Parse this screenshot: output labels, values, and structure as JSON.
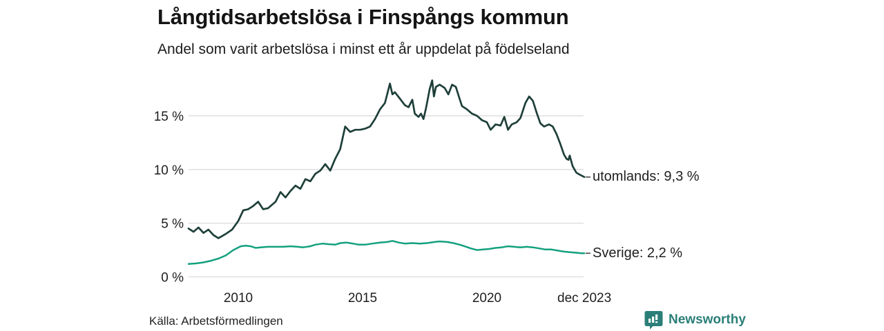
{
  "header": {
    "title": "Långtidsarbetslösa i Finspångs kommun",
    "subtitle": "Andel som varit arbetslösa i minst ett år uppdelat på födelseland"
  },
  "footer": {
    "source": "Källa: Arbetsförmedlingen",
    "brand": "Newsworthy"
  },
  "colors": {
    "grid": "#dcdcdc",
    "tick_dash": "#4a4a4a",
    "brand_teal": "#2b7f78"
  },
  "chart_data": {
    "type": "line",
    "title": "Långtidsarbetslösa i Finspångs kommun",
    "subtitle": "Andel som varit arbetslösa i minst ett år uppdelat på födelseland",
    "grid": true,
    "x_range": [
      2008,
      2023.92
    ],
    "ylim": [
      0,
      18.5
    ],
    "x_axis": {
      "ticks": [
        {
          "label": "2010",
          "year": 2010
        },
        {
          "label": "2015",
          "year": 2015
        },
        {
          "label": "2020",
          "year": 2020
        },
        {
          "label": "dec 2023",
          "year": 2023.92
        }
      ]
    },
    "y_axis": {
      "ticks": [
        {
          "label": "0 %",
          "value": 0
        },
        {
          "label": "5 %",
          "value": 5
        },
        {
          "label": "10 %",
          "value": 10
        },
        {
          "label": "15 %",
          "value": 15
        }
      ]
    },
    "series": [
      {
        "name": "utomlands",
        "end_label": "utomlands: 9,3 %",
        "end_value": "9,3 %",
        "color": "#1e3f39",
        "points": [
          [
            2008.0,
            4.5
          ],
          [
            2008.2,
            4.2
          ],
          [
            2008.4,
            4.6
          ],
          [
            2008.6,
            4.1
          ],
          [
            2008.8,
            4.4
          ],
          [
            2009.0,
            3.9
          ],
          [
            2009.2,
            3.6
          ],
          [
            2009.5,
            4.0
          ],
          [
            2009.75,
            4.4
          ],
          [
            2010.0,
            5.2
          ],
          [
            2010.2,
            6.2
          ],
          [
            2010.4,
            6.3
          ],
          [
            2010.6,
            6.6
          ],
          [
            2010.8,
            7.0
          ],
          [
            2011.0,
            6.3
          ],
          [
            2011.2,
            6.4
          ],
          [
            2011.5,
            7.0
          ],
          [
            2011.7,
            7.9
          ],
          [
            2011.9,
            7.4
          ],
          [
            2012.1,
            8.0
          ],
          [
            2012.3,
            8.5
          ],
          [
            2012.5,
            8.2
          ],
          [
            2012.7,
            9.1
          ],
          [
            2012.9,
            8.9
          ],
          [
            2013.1,
            9.6
          ],
          [
            2013.3,
            9.9
          ],
          [
            2013.5,
            10.5
          ],
          [
            2013.7,
            9.9
          ],
          [
            2013.9,
            11.0
          ],
          [
            2014.1,
            11.9
          ],
          [
            2014.3,
            14.0
          ],
          [
            2014.5,
            13.5
          ],
          [
            2014.7,
            13.7
          ],
          [
            2014.9,
            13.7
          ],
          [
            2015.1,
            13.8
          ],
          [
            2015.3,
            14.0
          ],
          [
            2015.5,
            14.7
          ],
          [
            2015.7,
            15.6
          ],
          [
            2015.9,
            16.2
          ],
          [
            2016.1,
            18.0
          ],
          [
            2016.2,
            17.0
          ],
          [
            2016.3,
            17.2
          ],
          [
            2016.5,
            16.6
          ],
          [
            2016.7,
            16.0
          ],
          [
            2016.85,
            15.8
          ],
          [
            2017.0,
            16.5
          ],
          [
            2017.1,
            15.2
          ],
          [
            2017.25,
            14.9
          ],
          [
            2017.35,
            15.2
          ],
          [
            2017.45,
            14.7
          ],
          [
            2017.55,
            15.7
          ],
          [
            2017.7,
            17.5
          ],
          [
            2017.8,
            18.3
          ],
          [
            2017.87,
            16.8
          ],
          [
            2017.95,
            17.7
          ],
          [
            2018.1,
            17.9
          ],
          [
            2018.3,
            17.6
          ],
          [
            2018.45,
            17.0
          ],
          [
            2018.6,
            17.9
          ],
          [
            2018.75,
            17.7
          ],
          [
            2018.9,
            16.6
          ],
          [
            2019.0,
            15.9
          ],
          [
            2019.2,
            15.6
          ],
          [
            2019.4,
            15.2
          ],
          [
            2019.6,
            15.0
          ],
          [
            2019.8,
            14.6
          ],
          [
            2020.0,
            14.4
          ],
          [
            2020.15,
            13.7
          ],
          [
            2020.35,
            14.2
          ],
          [
            2020.55,
            14.1
          ],
          [
            2020.7,
            14.9
          ],
          [
            2020.85,
            13.7
          ],
          [
            2021.0,
            14.2
          ],
          [
            2021.2,
            14.4
          ],
          [
            2021.35,
            14.8
          ],
          [
            2021.55,
            16.2
          ],
          [
            2021.7,
            16.8
          ],
          [
            2021.85,
            16.4
          ],
          [
            2022.0,
            15.3
          ],
          [
            2022.15,
            14.3
          ],
          [
            2022.3,
            14.0
          ],
          [
            2022.5,
            14.2
          ],
          [
            2022.65,
            14.0
          ],
          [
            2022.8,
            13.3
          ],
          [
            2022.95,
            12.4
          ],
          [
            2023.1,
            11.4
          ],
          [
            2023.2,
            11.0
          ],
          [
            2023.28,
            10.9
          ],
          [
            2023.33,
            11.3
          ],
          [
            2023.45,
            10.3
          ],
          [
            2023.6,
            9.7
          ],
          [
            2023.75,
            9.5
          ],
          [
            2023.92,
            9.3
          ]
        ]
      },
      {
        "name": "Sverige",
        "end_label": "Sverige: 2,2 %",
        "end_value": "2,2 %",
        "color": "#13a07f",
        "points": [
          [
            2008.0,
            1.2
          ],
          [
            2008.3,
            1.25
          ],
          [
            2008.6,
            1.35
          ],
          [
            2008.9,
            1.5
          ],
          [
            2009.2,
            1.7
          ],
          [
            2009.5,
            2.0
          ],
          [
            2009.8,
            2.5
          ],
          [
            2010.1,
            2.85
          ],
          [
            2010.3,
            2.9
          ],
          [
            2010.5,
            2.85
          ],
          [
            2010.7,
            2.7
          ],
          [
            2010.9,
            2.75
          ],
          [
            2011.2,
            2.8
          ],
          [
            2011.5,
            2.8
          ],
          [
            2011.8,
            2.8
          ],
          [
            2012.1,
            2.85
          ],
          [
            2012.4,
            2.8
          ],
          [
            2012.6,
            2.75
          ],
          [
            2012.9,
            2.85
          ],
          [
            2013.1,
            3.0
          ],
          [
            2013.4,
            3.1
          ],
          [
            2013.6,
            3.05
          ],
          [
            2013.9,
            3.0
          ],
          [
            2014.1,
            3.15
          ],
          [
            2014.35,
            3.2
          ],
          [
            2014.6,
            3.1
          ],
          [
            2014.85,
            3.0
          ],
          [
            2015.1,
            3.0
          ],
          [
            2015.4,
            3.1
          ],
          [
            2015.7,
            3.2
          ],
          [
            2016.0,
            3.25
          ],
          [
            2016.2,
            3.35
          ],
          [
            2016.45,
            3.2
          ],
          [
            2016.7,
            3.1
          ],
          [
            2017.0,
            3.15
          ],
          [
            2017.3,
            3.1
          ],
          [
            2017.6,
            3.15
          ],
          [
            2017.9,
            3.25
          ],
          [
            2018.1,
            3.3
          ],
          [
            2018.4,
            3.25
          ],
          [
            2018.65,
            3.15
          ],
          [
            2018.9,
            3.0
          ],
          [
            2019.1,
            2.85
          ],
          [
            2019.35,
            2.65
          ],
          [
            2019.6,
            2.5
          ],
          [
            2019.85,
            2.55
          ],
          [
            2020.1,
            2.6
          ],
          [
            2020.35,
            2.7
          ],
          [
            2020.6,
            2.75
          ],
          [
            2020.85,
            2.85
          ],
          [
            2021.1,
            2.8
          ],
          [
            2021.35,
            2.75
          ],
          [
            2021.6,
            2.8
          ],
          [
            2021.85,
            2.75
          ],
          [
            2022.1,
            2.65
          ],
          [
            2022.35,
            2.55
          ],
          [
            2022.6,
            2.55
          ],
          [
            2022.85,
            2.45
          ],
          [
            2023.1,
            2.35
          ],
          [
            2023.35,
            2.3
          ],
          [
            2023.6,
            2.25
          ],
          [
            2023.8,
            2.2
          ],
          [
            2023.92,
            2.2
          ]
        ]
      }
    ]
  }
}
